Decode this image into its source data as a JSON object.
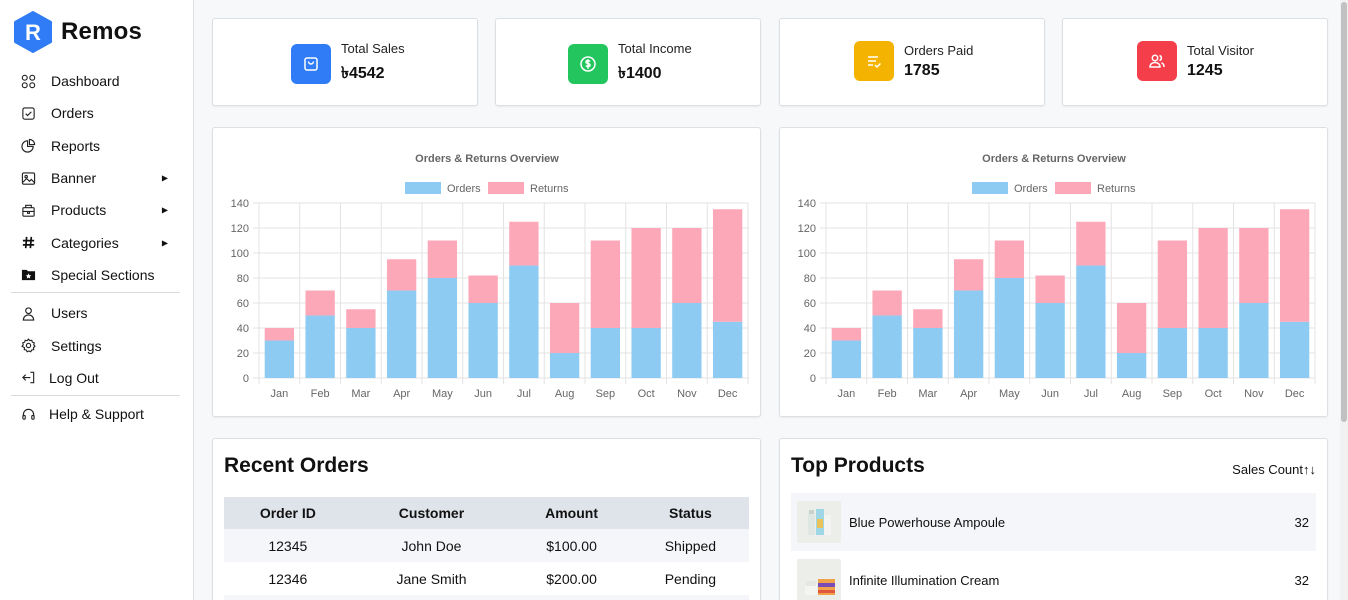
{
  "brand": {
    "name": "Remos",
    "logo_letter": "R",
    "accent": "#2f7cf6"
  },
  "sidebar": {
    "items": [
      {
        "label": "Dashboard",
        "icon": "grid-icon"
      },
      {
        "label": "Orders",
        "icon": "checkbox-icon"
      },
      {
        "label": "Reports",
        "icon": "pie-chart-icon"
      },
      {
        "label": "Banner",
        "icon": "image-icon",
        "has_submenu": true
      },
      {
        "label": "Products",
        "icon": "package-icon",
        "has_submenu": true
      },
      {
        "label": "Categories",
        "icon": "hash-icon",
        "has_submenu": true
      },
      {
        "label": "Special Sections",
        "icon": "folder-star-icon"
      },
      {
        "label": "Users",
        "icon": "user-icon"
      },
      {
        "label": "Settings",
        "icon": "gear-icon"
      },
      {
        "label": "Log Out",
        "icon": "logout-icon"
      },
      {
        "label": "Help & Support",
        "icon": "headset-icon"
      }
    ]
  },
  "stats": [
    {
      "label": "Total Sales",
      "value": "৳4542",
      "icon": "shopping-bag-icon",
      "color": "#2f7cf6"
    },
    {
      "label": "Total Income",
      "value": "৳1400",
      "icon": "dollar-circle-icon",
      "color": "#22c55e"
    },
    {
      "label": "Orders Paid",
      "value": "1785",
      "icon": "list-check-icon",
      "color": "#f5b301"
    },
    {
      "label": "Total Visitor",
      "value": "1245",
      "icon": "users-icon",
      "color": "#f43f4a"
    }
  ],
  "chart_data": [
    {
      "type": "bar",
      "stacked": true,
      "title": "Orders & Returns Overview",
      "categories": [
        "Jan",
        "Feb",
        "Mar",
        "Apr",
        "May",
        "Jun",
        "Jul",
        "Aug",
        "Sep",
        "Oct",
        "Nov",
        "Dec"
      ],
      "series": [
        {
          "name": "Orders",
          "color": "#8ecbf3",
          "values": [
            30,
            50,
            40,
            70,
            80,
            60,
            90,
            20,
            40,
            40,
            60,
            45
          ]
        },
        {
          "name": "Returns",
          "color": "#fda8b8",
          "values": [
            10,
            20,
            15,
            25,
            30,
            22,
            35,
            40,
            70,
            80,
            60,
            90
          ]
        }
      ],
      "ylim": [
        0,
        140
      ],
      "yticks": [
        0,
        20,
        40,
        60,
        80,
        100,
        120,
        140
      ],
      "grid": true,
      "legend": "top"
    },
    {
      "type": "bar",
      "stacked": true,
      "title": "Orders & Returns Overview",
      "categories": [
        "Jan",
        "Feb",
        "Mar",
        "Apr",
        "May",
        "Jun",
        "Jul",
        "Aug",
        "Sep",
        "Oct",
        "Nov",
        "Dec"
      ],
      "series": [
        {
          "name": "Orders",
          "color": "#8ecbf3",
          "values": [
            30,
            50,
            40,
            70,
            80,
            60,
            90,
            20,
            40,
            40,
            60,
            45
          ]
        },
        {
          "name": "Returns",
          "color": "#fda8b8",
          "values": [
            10,
            20,
            15,
            25,
            30,
            22,
            35,
            40,
            70,
            80,
            60,
            90
          ]
        }
      ],
      "ylim": [
        0,
        140
      ],
      "yticks": [
        0,
        20,
        40,
        60,
        80,
        100,
        120,
        140
      ],
      "grid": true,
      "legend": "top"
    }
  ],
  "recent_orders": {
    "title": "Recent Orders",
    "columns": [
      "Order ID",
      "Customer",
      "Amount",
      "Status"
    ],
    "rows": [
      [
        "12345",
        "John Doe",
        "$100.00",
        "Shipped"
      ],
      [
        "12346",
        "Jane Smith",
        "$200.00",
        "Pending"
      ]
    ]
  },
  "top_products": {
    "title": "Top Products",
    "sort_label": "Sales Count↑↓",
    "items": [
      {
        "name": "Blue Powerhouse Ampoule",
        "count": "32"
      },
      {
        "name": "Infinite Illumination Cream",
        "count": "32"
      }
    ]
  }
}
